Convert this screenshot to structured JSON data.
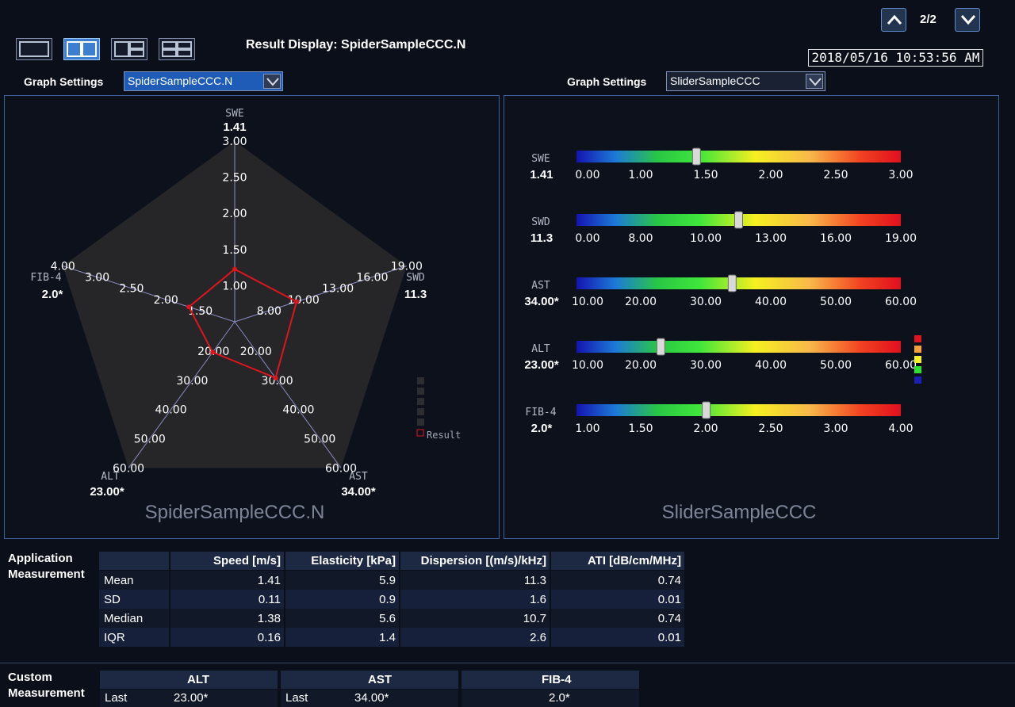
{
  "toolbar": {
    "layouts": [
      "single-view",
      "dual-view",
      "triple-view",
      "quad-view"
    ],
    "active_layout": "dual-view",
    "result_display": "Result Display: SpiderSampleCCC.N",
    "page_indicator": "2/2",
    "datetime": "2018/05/16  10:53:56 AM"
  },
  "left_panel": {
    "settings_label": "Graph Settings",
    "selected_graph": "SpiderSampleCCC.N",
    "graph_name": "SpiderSampleCCC.N",
    "spider": {
      "axes": [
        {
          "name": "SWE",
          "value_label": "1.41",
          "value": 1.41,
          "ticks": [
            "1.00",
            "1.50",
            "2.00",
            "2.50",
            "3.00"
          ],
          "min": 0.5,
          "max": 3.0
        },
        {
          "name": "SWD",
          "value_label": "11.3",
          "value": 11.3,
          "ticks": [
            "8.00",
            "10.00",
            "13.00",
            "16.00",
            "19.00"
          ],
          "min": 5.0,
          "max": 19.0
        },
        {
          "name": "AST",
          "value_label": "34.00*",
          "value": 34.0,
          "ticks": [
            "20.00",
            "30.00",
            "40.00",
            "50.00",
            "60.00"
          ],
          "min": 10.0,
          "max": 60.0
        },
        {
          "name": "ALT",
          "value_label": "23.00*",
          "value": 23.0,
          "ticks": [
            "20.00",
            "30.00",
            "40.00",
            "50.00",
            "60.00"
          ],
          "min": 10.0,
          "max": 60.0
        },
        {
          "name": "FIB-4",
          "value_label": "2.0*",
          "value": 2.0,
          "ticks": [
            "1.50",
            "2.00",
            "2.50",
            "3.00",
            "4.00"
          ],
          "min": 1.0,
          "max": 4.0
        }
      ],
      "legend_label": "Result",
      "series_color": "#e0141e",
      "background_color": "#262628"
    }
  },
  "right_panel": {
    "settings_label": "Graph Settings",
    "selected_graph": "SliderSampleCCC",
    "graph_name": "SliderSampleCCC",
    "sliders": [
      {
        "name": "SWE",
        "value_label": "1.41",
        "position": 0.37,
        "ticks": [
          "0.00",
          "1.00",
          "1.50",
          "2.00",
          "2.50",
          "3.00"
        ]
      },
      {
        "name": "SWD",
        "value_label": "11.3",
        "position": 0.5,
        "ticks": [
          "0.00",
          "8.00",
          "10.00",
          "13.00",
          "16.00",
          "19.00"
        ]
      },
      {
        "name": "AST",
        "value_label": "34.00*",
        "position": 0.48,
        "ticks": [
          "10.00",
          "20.00",
          "30.00",
          "40.00",
          "50.00",
          "60.00"
        ]
      },
      {
        "name": "ALT",
        "value_label": "23.00*",
        "position": 0.26,
        "ticks": [
          "10.00",
          "20.00",
          "30.00",
          "40.00",
          "50.00",
          "60.00"
        ]
      },
      {
        "name": "FIB-4",
        "value_label": "2.0*",
        "position": 0.4,
        "ticks": [
          "1.00",
          "1.50",
          "2.00",
          "2.50",
          "3.00",
          "4.00"
        ]
      }
    ],
    "legend_colors": [
      "#e0141e",
      "#f6a23c",
      "#f2ee2a",
      "#2ce033",
      "#1b1fb5"
    ]
  },
  "app_measurement": {
    "label_line1": "Application",
    "label_line2": "Measurement",
    "columns": [
      "",
      "Speed [m/s]",
      "Elasticity [kPa]",
      "Dispersion [(m/s)/kHz]",
      "ATI [dB/cm/MHz]"
    ],
    "rows": [
      [
        "Mean",
        "1.41",
        "5.9",
        "11.3",
        "0.74"
      ],
      [
        "SD",
        "0.11",
        "0.9",
        "1.6",
        "0.01"
      ],
      [
        "Median",
        "1.38",
        "5.6",
        "10.7",
        "0.74"
      ],
      [
        "IQR",
        "0.16",
        "1.4",
        "2.6",
        "0.01"
      ]
    ]
  },
  "custom_measurement": {
    "label_line1": "Custom",
    "label_line2": "Measurement",
    "blocks": [
      {
        "header": "ALT",
        "row_label": "Last",
        "value": "23.00*"
      },
      {
        "header": "AST",
        "row_label": "Last",
        "value": "34.00*"
      },
      {
        "header": "FIB-4",
        "row_label": "",
        "value": "2.0*"
      }
    ]
  }
}
